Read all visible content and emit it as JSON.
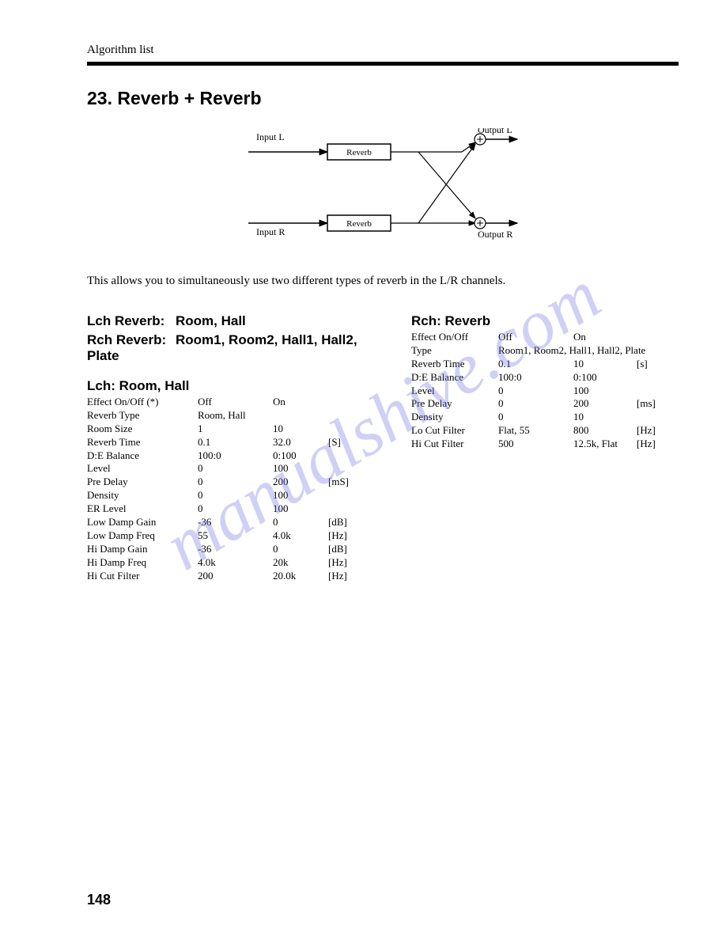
{
  "header": {
    "label": "Algorithm list"
  },
  "title": "23. Reverb + Reverb",
  "diagram": {
    "input_l": "Input L",
    "input_r": "Input R",
    "output_l": "Output L",
    "output_r": "Output R",
    "block_top": "Reverb",
    "block_bottom": "Reverb"
  },
  "description": "This allows you to simultaneously use two different types of reverb in the L/R channels.",
  "left": {
    "h1_label": "Lch Reverb:",
    "h1_value": "Room, Hall",
    "h2_label": "Rch Reverb:",
    "h2_value": "Room1, Room2, Hall1, Hall2, Plate",
    "sub": "Lch: Room, Hall",
    "rows": [
      {
        "name": "Effect On/Off (*)",
        "v1": "Off",
        "v2": "On",
        "unit": ""
      },
      {
        "name": "Reverb Type",
        "v1": "Room, Hall",
        "v2": "",
        "unit": ""
      },
      {
        "name": "Room Size",
        "v1": "1",
        "v2": "10",
        "unit": ""
      },
      {
        "name": "Reverb Time",
        "v1": "0.1",
        "v2": "32.0",
        "unit": "[S]"
      },
      {
        "name": "D:E Balance",
        "v1": "100:0",
        "v2": "0:100",
        "unit": ""
      },
      {
        "name": "Level",
        "v1": "0",
        "v2": "100",
        "unit": ""
      },
      {
        "name": "Pre Delay",
        "v1": "0",
        "v2": "200",
        "unit": "[mS]"
      },
      {
        "name": "Density",
        "v1": "0",
        "v2": "100",
        "unit": ""
      },
      {
        "name": "ER Level",
        "v1": "0",
        "v2": "100",
        "unit": ""
      },
      {
        "name": "Low Damp Gain",
        "v1": "-36",
        "v2": "0",
        "unit": "[dB]"
      },
      {
        "name": "Low Damp Freq",
        "v1": "55",
        "v2": "4.0k",
        "unit": "[Hz]"
      },
      {
        "name": "Hi Damp Gain",
        "v1": "-36",
        "v2": "0",
        "unit": "[dB]"
      },
      {
        "name": "Hi Damp Freq",
        "v1": "4.0k",
        "v2": "20k",
        "unit": "[Hz]"
      },
      {
        "name": "Hi Cut Filter",
        "v1": "200",
        "v2": "20.0k",
        "unit": "[Hz]"
      }
    ]
  },
  "right": {
    "sub": "Rch: Reverb",
    "rows": [
      {
        "name": "Effect On/Off",
        "v1": "Off",
        "v2": "On",
        "unit": "",
        "type": false
      },
      {
        "name": "Type",
        "v1": "Room1, Room2, Hall1, Hall2, Plate",
        "v2": "",
        "unit": "",
        "type": true
      },
      {
        "name": "Reverb Time",
        "v1": "0.1",
        "v2": "10",
        "unit": "[s]",
        "type": false
      },
      {
        "name": "D:E Balance",
        "v1": "100:0",
        "v2": "0:100",
        "unit": "",
        "type": false
      },
      {
        "name": "Level",
        "v1": "0",
        "v2": "100",
        "unit": "",
        "type": false
      },
      {
        "name": "Pre Delay",
        "v1": "0",
        "v2": "200",
        "unit": "[ms]",
        "type": false
      },
      {
        "name": "Density",
        "v1": "0",
        "v2": "10",
        "unit": "",
        "type": false
      },
      {
        "name": "Lo Cut Filter",
        "v1": "Flat, 55",
        "v2": "800",
        "unit": "[Hz]",
        "type": false
      },
      {
        "name": "Hi Cut Filter",
        "v1": "500",
        "v2": "12.5k, Flat",
        "unit": "[Hz]",
        "type": false
      }
    ]
  },
  "page_number": "148",
  "watermark": "manualshive.com",
  "colors": {
    "text": "#000000",
    "bg": "#ffffff",
    "watermark": "rgba(120,120,230,0.35)"
  }
}
